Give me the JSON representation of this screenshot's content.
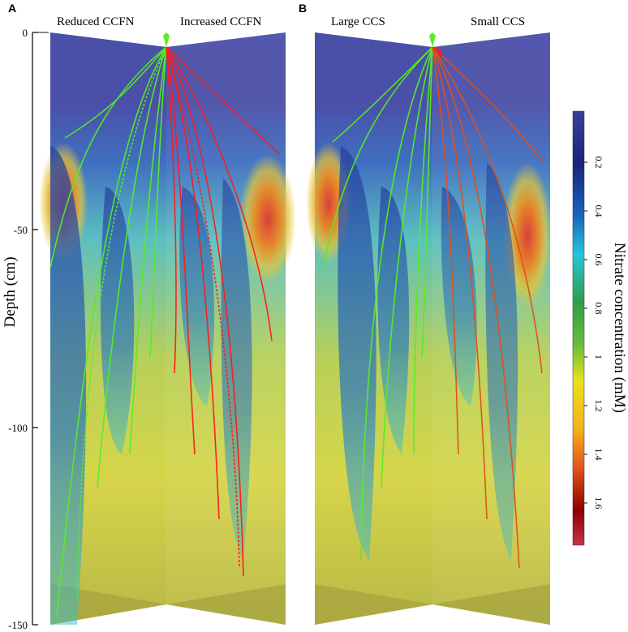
{
  "panels": [
    {
      "letter": "A",
      "left_title": "Reduced CCFN",
      "right_title": "Increased CCFN"
    },
    {
      "letter": "B",
      "left_title": "Large CCS",
      "right_title": "Small CCS"
    }
  ],
  "depth_axis": {
    "label": "Depth (cm)",
    "ticks": [
      "0",
      "-50",
      "-100",
      "-150"
    ]
  },
  "colorbar": {
    "label": "Nitrate concentration (mM)",
    "ticks": [
      "0.2",
      "0.4",
      "0.6",
      "0.8",
      "1",
      "1.2",
      "1.4",
      "1.6"
    ],
    "stops": [
      "#3a3f9a",
      "#1a237e",
      "#1565c0",
      "#26c6da",
      "#2e9e4a",
      "#6abf3a",
      "#e7e21a",
      "#f5b21a",
      "#e5561a",
      "#8b0000",
      "#c8324a"
    ]
  },
  "colors": {
    "reduced_roots": "#55ee22",
    "increased_roots": "#ff1a1a",
    "small_ccs_roots": "#e0501a",
    "soil_background": "#c9c84a",
    "top_soil": "#4a4fa8"
  }
}
